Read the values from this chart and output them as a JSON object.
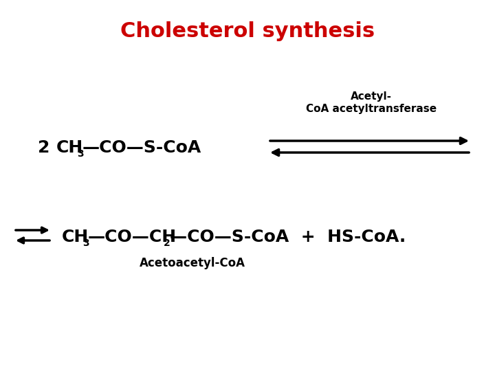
{
  "title": "Cholesterol synthesis",
  "title_color": "#cc0000",
  "title_fontsize": 22,
  "title_fontweight": "bold",
  "bg_color": "#ffffff",
  "enzyme_line1": "Acetyl-",
  "enzyme_line2": "CoA acetyltransferase",
  "enzyme_fontsize": 11,
  "enzyme_fontweight": "bold",
  "arrow_color": "#000000",
  "text_color": "#000000",
  "formula_fontsize": 16,
  "formula_fontweight": "bold",
  "sub_fontsize": 10,
  "product_name": "Acetoacetyl-CoA",
  "product_name_fontsize": 12
}
